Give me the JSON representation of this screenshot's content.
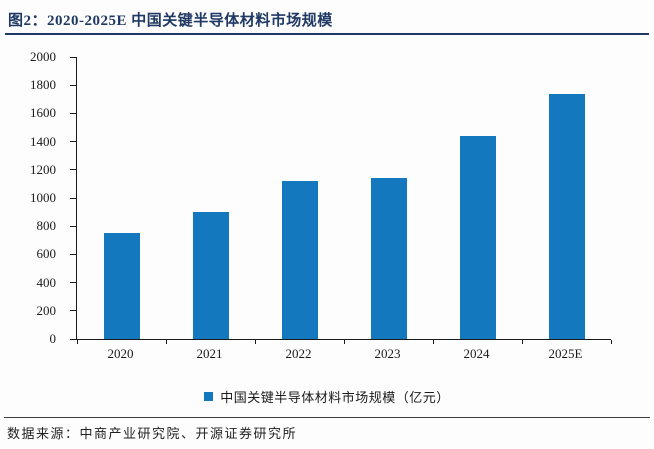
{
  "header": {
    "title": "图2：2020-2025E 中国关键半导体材料市场规模"
  },
  "legend": {
    "label": "中国关键半导体材料市场规模（亿元）"
  },
  "footer": {
    "source": "数据来源：中商产业研究院、开源证券研究所"
  },
  "colors": {
    "title": "#1F3864",
    "title_rule": "#1F3864",
    "bar": "#1478BE",
    "axis": "#1a1a1a",
    "footer_rule": "#3c3c3c"
  },
  "chart_data": {
    "type": "bar",
    "title": "2020-2025E 中国关键半导体材料市场规模",
    "categories": [
      "2020",
      "2021",
      "2022",
      "2023",
      "2024",
      "2025E"
    ],
    "values": [
      750,
      900,
      1120,
      1140,
      1440,
      1740
    ],
    "series_name": "中国关键半导体材料市场规模（亿元）",
    "xlabel": "",
    "ylabel": "",
    "unit": "亿元",
    "ylim": [
      0,
      2000
    ],
    "ytick_step": 200,
    "grid": false,
    "legend_position": "bottom"
  }
}
